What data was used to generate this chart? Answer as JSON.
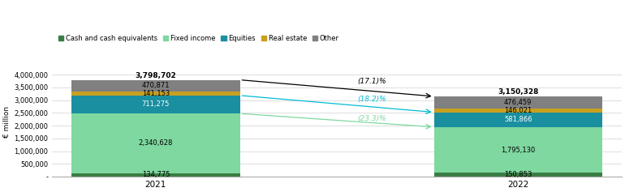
{
  "years": [
    "2021",
    "2022"
  ],
  "segments": {
    "Cash and cash equivalents": {
      "values": [
        134775,
        150853
      ],
      "color": "#3a7d44"
    },
    "Fixed income": {
      "values": [
        2340628,
        1795130
      ],
      "color": "#7ed8a0"
    },
    "Equities": {
      "values": [
        711275,
        581866
      ],
      "color": "#1a8fa0"
    },
    "Real estate": {
      "values": [
        141153,
        146021
      ],
      "color": "#c8a020"
    },
    "Other": {
      "values": [
        470871,
        476459
      ],
      "color": "#808080"
    }
  },
  "totals": [
    3798702,
    3150328
  ],
  "bar_width": 0.65,
  "bar_positions": [
    0.3,
    1.7
  ],
  "xlim": [
    -0.1,
    2.1
  ],
  "ylim": [
    0,
    4300000
  ],
  "yticks": [
    0,
    500000,
    1000000,
    1500000,
    2000000,
    2500000,
    3000000,
    3500000,
    4000000
  ],
  "ytick_labels": [
    "-",
    "500,000",
    "1,000,000",
    "1,500,000",
    "2,000,000",
    "2,500,000",
    "3,000,000",
    "3,500,000",
    "4,000,000"
  ],
  "ylabel": "€ million",
  "background_color": "#ffffff",
  "grid_color": "#d0d0d0",
  "segment_order": [
    "Cash and cash equivalents",
    "Fixed income",
    "Equities",
    "Real estate",
    "Other"
  ],
  "segment_labels": {
    "2021": {
      "Cash and cash equivalents": 134775,
      "Fixed income": 2340628,
      "Equities": 711275,
      "Real estate": 141153,
      "Other": 470871
    },
    "2022": {
      "Cash and cash equivalents": 150853,
      "Fixed income": 1795130,
      "Equities": 581866,
      "Real estate": 146021,
      "Other": 476459
    }
  },
  "label_colors": {
    "Cash and cash equivalents": "#000000",
    "Fixed income": "#000000",
    "Equities": "#ffffff",
    "Real estate": "#000000",
    "Other": "#000000"
  },
  "arrow_17": {
    "label": "(17.1)%",
    "color": "#000000",
    "lw": 0.9
  },
  "arrow_18": {
    "label": "(18.2)%",
    "color": "#00bcd4",
    "lw": 0.9
  },
  "arrow_23": {
    "label": "(23.3)%",
    "color": "#7ed8a0",
    "lw": 0.9
  }
}
